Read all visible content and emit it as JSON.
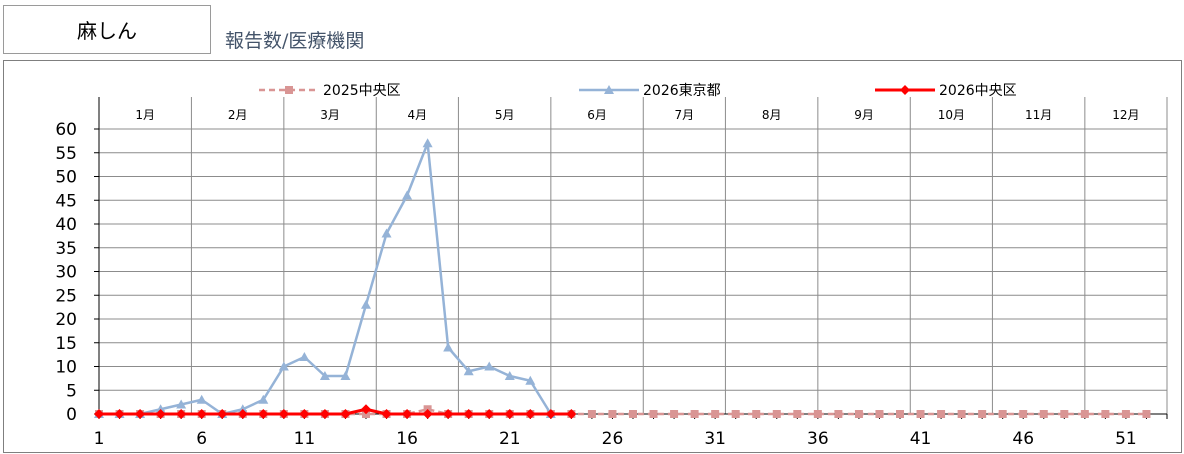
{
  "header": {
    "title": "麻しん",
    "subtitle": "報告数/医療機関"
  },
  "chart_data": {
    "type": "line",
    "title": "麻しん",
    "ylabel": "報告数/医療機関",
    "xlabel": "",
    "ylim": [
      0,
      60
    ],
    "yticks": [
      0,
      5,
      10,
      15,
      20,
      25,
      30,
      35,
      40,
      45,
      50,
      55,
      60
    ],
    "xlim": [
      1,
      53
    ],
    "xticks": [
      1,
      6,
      11,
      16,
      21,
      26,
      31,
      36,
      41,
      46,
      51
    ],
    "months": [
      "1月",
      "2月",
      "3月",
      "4月",
      "5月",
      "6月",
      "7月",
      "8月",
      "9月",
      "10月",
      "11月",
      "12月"
    ],
    "month_boundaries": [
      1,
      5.5,
      10,
      14.5,
      18.5,
      23,
      27.5,
      31.5,
      36,
      40.5,
      44.5,
      49,
      53
    ],
    "grid": true,
    "legend_position": "top",
    "series": [
      {
        "name": "2025中央区",
        "color": "#d99594",
        "marker": "square",
        "dash": true,
        "x": [
          1,
          2,
          3,
          4,
          5,
          6,
          7,
          8,
          9,
          10,
          11,
          12,
          13,
          14,
          15,
          16,
          17,
          18,
          19,
          20,
          21,
          22,
          23,
          24,
          25,
          26,
          27,
          28,
          29,
          30,
          31,
          32,
          33,
          34,
          35,
          36,
          37,
          38,
          39,
          40,
          41,
          42,
          43,
          44,
          45,
          46,
          47,
          48,
          49,
          50,
          51,
          52
        ],
        "values": [
          0,
          0,
          0,
          0,
          0,
          0,
          0,
          0,
          0,
          0,
          0,
          0,
          0,
          0,
          0,
          0,
          1,
          0,
          0,
          0,
          0,
          0,
          0,
          0,
          0,
          0,
          0,
          0,
          0,
          0,
          0,
          0,
          0,
          0,
          0,
          0,
          0,
          0,
          0,
          0,
          0,
          0,
          0,
          0,
          0,
          0,
          0,
          0,
          0,
          0,
          0,
          0
        ]
      },
      {
        "name": "2026東京都",
        "color": "#95b3d7",
        "marker": "triangle",
        "dash": false,
        "x": [
          1,
          2,
          3,
          4,
          5,
          6,
          7,
          8,
          9,
          10,
          11,
          12,
          13,
          14,
          15,
          16,
          17,
          18,
          19,
          20,
          21,
          22,
          23
        ],
        "values": [
          0,
          0,
          0,
          1,
          2,
          3,
          0,
          1,
          3,
          10,
          12,
          8,
          8,
          23,
          38,
          46,
          57,
          14,
          9,
          10,
          8,
          7,
          0
        ]
      },
      {
        "name": "2026中央区",
        "color": "#ff0000",
        "marker": "diamond",
        "dash": false,
        "x": [
          1,
          2,
          3,
          4,
          5,
          6,
          7,
          8,
          9,
          10,
          11,
          12,
          13,
          14,
          15,
          16,
          17,
          18,
          19,
          20,
          21,
          22,
          23,
          24
        ],
        "values": [
          0,
          0,
          0,
          0,
          0,
          0,
          0,
          0,
          0,
          0,
          0,
          0,
          0,
          1,
          0,
          0,
          0,
          0,
          0,
          0,
          0,
          0,
          0,
          0
        ]
      }
    ]
  }
}
